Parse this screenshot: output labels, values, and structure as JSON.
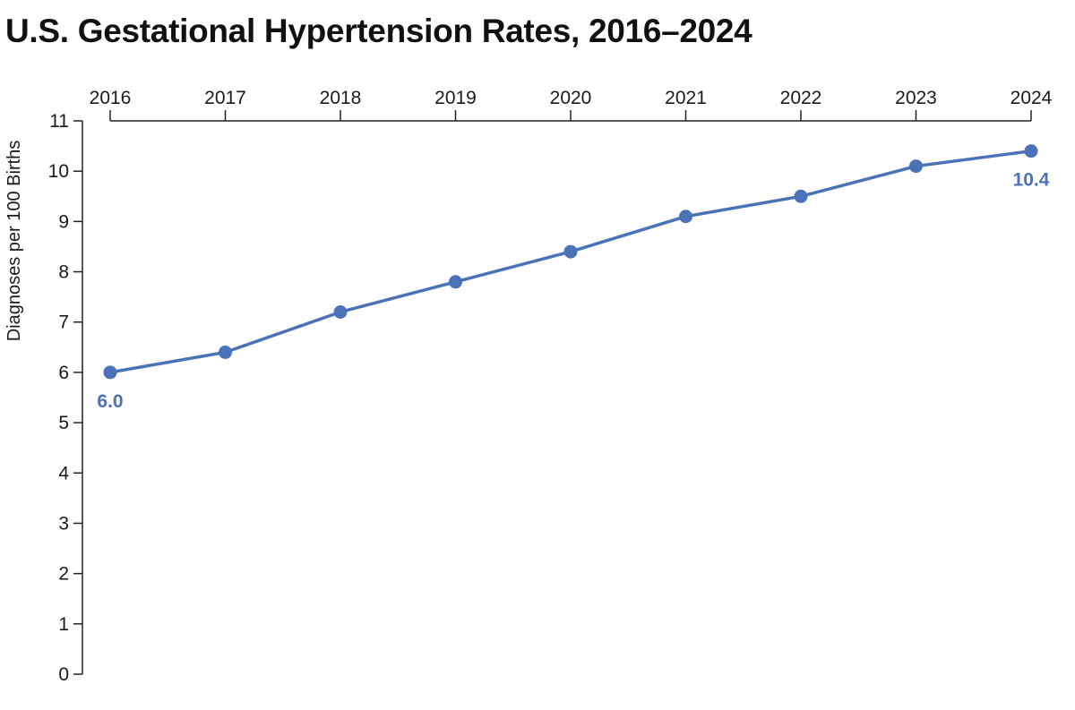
{
  "chart_data": {
    "type": "line",
    "title": "U.S. Gestational Hypertension Rates, 2016–2024",
    "xlabel": "",
    "ylabel": "Diagnoses per 100 Births",
    "x": [
      "2016",
      "2017",
      "2018",
      "2019",
      "2020",
      "2021",
      "2022",
      "2023",
      "2024"
    ],
    "series": [
      {
        "values": [
          6.0,
          6.4,
          7.2,
          7.8,
          8.4,
          9.1,
          9.5,
          10.1,
          10.4
        ],
        "color": "#4a72b8"
      }
    ],
    "ylim": [
      0,
      11
    ],
    "y_ticks": [
      "0",
      "1",
      "2",
      "3",
      "4",
      "5",
      "6",
      "7",
      "8",
      "9",
      "10",
      "11"
    ],
    "x_axis_position": "top",
    "grid": false,
    "legend": "none",
    "annotations": [
      {
        "index": 0,
        "text": "6.0",
        "placement": "below"
      },
      {
        "index": 8,
        "text": "10.4",
        "placement": "below"
      }
    ]
  }
}
